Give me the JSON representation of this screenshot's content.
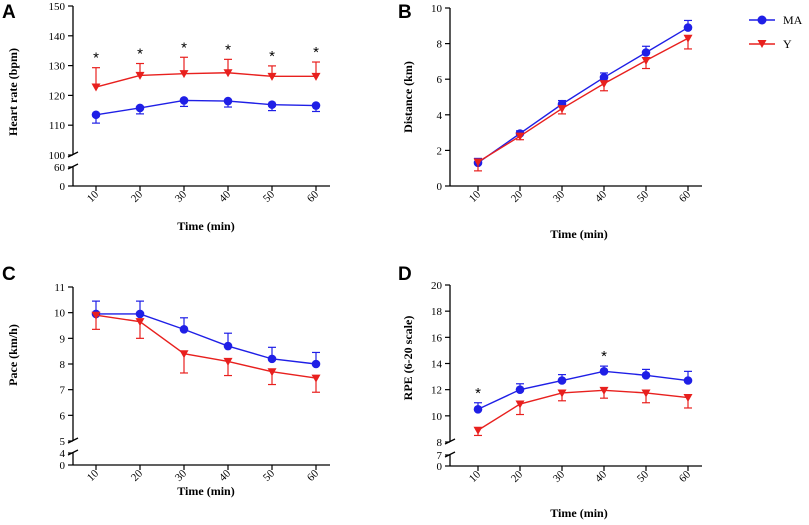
{
  "colors": {
    "MA": "#1f1fe6",
    "Y": "#e8201e",
    "axis": "#000000"
  },
  "legend": [
    {
      "key": "MA",
      "label": "MA"
    },
    {
      "key": "Y",
      "label": "Y"
    }
  ],
  "chart_data": [
    {
      "panel": "A",
      "type": "line",
      "ylabel": "Heart rate (bpm)",
      "xlabel": "Time (min)",
      "x": [
        10,
        20,
        30,
        40,
        50,
        60
      ],
      "x_tick_labels": [
        "10",
        "20",
        "30",
        "40",
        "50",
        "60"
      ],
      "y_ticks_main": [
        100,
        110,
        120,
        130,
        140,
        150
      ],
      "y_ticks_low": [
        0,
        60
      ],
      "ylim_main": [
        100,
        150
      ],
      "ylim_low": [
        0,
        60
      ],
      "axis_break": true,
      "series": [
        {
          "name": "MA",
          "values": [
            113.5,
            115.8,
            118.3,
            118.1,
            116.9,
            116.6
          ],
          "error": [
            2.8,
            2.0,
            2.0,
            2.0,
            2.0,
            2.0
          ],
          "error_dir": "down"
        },
        {
          "name": "Y",
          "values": [
            122.8,
            126.7,
            127.3,
            127.6,
            126.4,
            126.4
          ],
          "error": [
            6.5,
            4.0,
            5.5,
            4.5,
            3.5,
            4.8
          ],
          "error_dir": "up"
        }
      ],
      "annotations": [
        {
          "x": 10,
          "text": "*"
        },
        {
          "x": 20,
          "text": "*"
        },
        {
          "x": 30,
          "text": "*"
        },
        {
          "x": 40,
          "text": "*"
        },
        {
          "x": 50,
          "text": "*"
        },
        {
          "x": 60,
          "text": "*"
        }
      ]
    },
    {
      "panel": "B",
      "type": "line",
      "ylabel": "Distance (km)",
      "xlabel": "Time (min)",
      "x": [
        10,
        20,
        30,
        40,
        50,
        60
      ],
      "x_tick_labels": [
        "10",
        "20",
        "30",
        "40",
        "50",
        "60"
      ],
      "y_ticks_main": [
        0,
        2,
        4,
        6,
        8,
        10
      ],
      "ylim_main": [
        0,
        10
      ],
      "axis_break": false,
      "series": [
        {
          "name": "MA",
          "values": [
            1.3,
            2.95,
            4.6,
            6.1,
            7.5,
            8.9
          ],
          "error": [
            0.25,
            0.15,
            0.2,
            0.25,
            0.35,
            0.4
          ],
          "error_dir": "up"
        },
        {
          "name": "Y",
          "values": [
            1.35,
            2.8,
            4.35,
            5.75,
            7.05,
            8.3
          ],
          "error": [
            0.5,
            0.2,
            0.3,
            0.4,
            0.45,
            0.6
          ],
          "error_dir": "down"
        }
      ],
      "annotations": []
    },
    {
      "panel": "C",
      "type": "line",
      "ylabel": "Pace (km/h)",
      "xlabel": "Time (min)",
      "x": [
        10,
        20,
        30,
        40,
        50,
        60
      ],
      "x_tick_labels": [
        "10",
        "20",
        "30",
        "40",
        "50",
        "60"
      ],
      "y_ticks_main": [
        5,
        6,
        7,
        8,
        9,
        10,
        11
      ],
      "y_ticks_low": [
        0,
        4
      ],
      "ylim_main": [
        5,
        11
      ],
      "ylim_low": [
        0,
        4
      ],
      "axis_break": true,
      "series": [
        {
          "name": "MA",
          "values": [
            9.95,
            9.95,
            9.35,
            8.7,
            8.2,
            8.0
          ],
          "error": [
            0.5,
            0.5,
            0.45,
            0.5,
            0.45,
            0.45
          ],
          "error_dir": "up"
        },
        {
          "name": "Y",
          "values": [
            9.9,
            9.65,
            8.4,
            8.1,
            7.7,
            7.45
          ],
          "error": [
            0.55,
            0.65,
            0.75,
            0.55,
            0.5,
            0.55
          ],
          "error_dir": "down"
        }
      ],
      "annotations": []
    },
    {
      "panel": "D",
      "type": "line",
      "ylabel": "RPE (6-20 scale)",
      "xlabel": "Time (min)",
      "x": [
        10,
        20,
        30,
        40,
        50,
        60
      ],
      "x_tick_labels": [
        "10",
        "20",
        "30",
        "40",
        "50",
        "60"
      ],
      "y_ticks_main": [
        8,
        10,
        12,
        14,
        16,
        18,
        20
      ],
      "y_ticks_low": [
        0,
        7
      ],
      "ylim_main": [
        8,
        20
      ],
      "ylim_low": [
        0,
        7
      ],
      "axis_break": true,
      "series": [
        {
          "name": "MA",
          "values": [
            10.5,
            12.0,
            12.7,
            13.4,
            13.1,
            12.7
          ],
          "error": [
            0.5,
            0.45,
            0.45,
            0.4,
            0.45,
            0.7
          ],
          "error_dir": "up"
        },
        {
          "name": "Y",
          "values": [
            8.9,
            10.9,
            11.75,
            11.95,
            11.75,
            11.4
          ],
          "error": [
            0.4,
            0.8,
            0.6,
            0.6,
            0.75,
            0.8
          ],
          "error_dir": "down"
        }
      ],
      "annotations": [
        {
          "x": 10,
          "text": "*"
        },
        {
          "x": 40,
          "text": "*"
        }
      ]
    }
  ]
}
